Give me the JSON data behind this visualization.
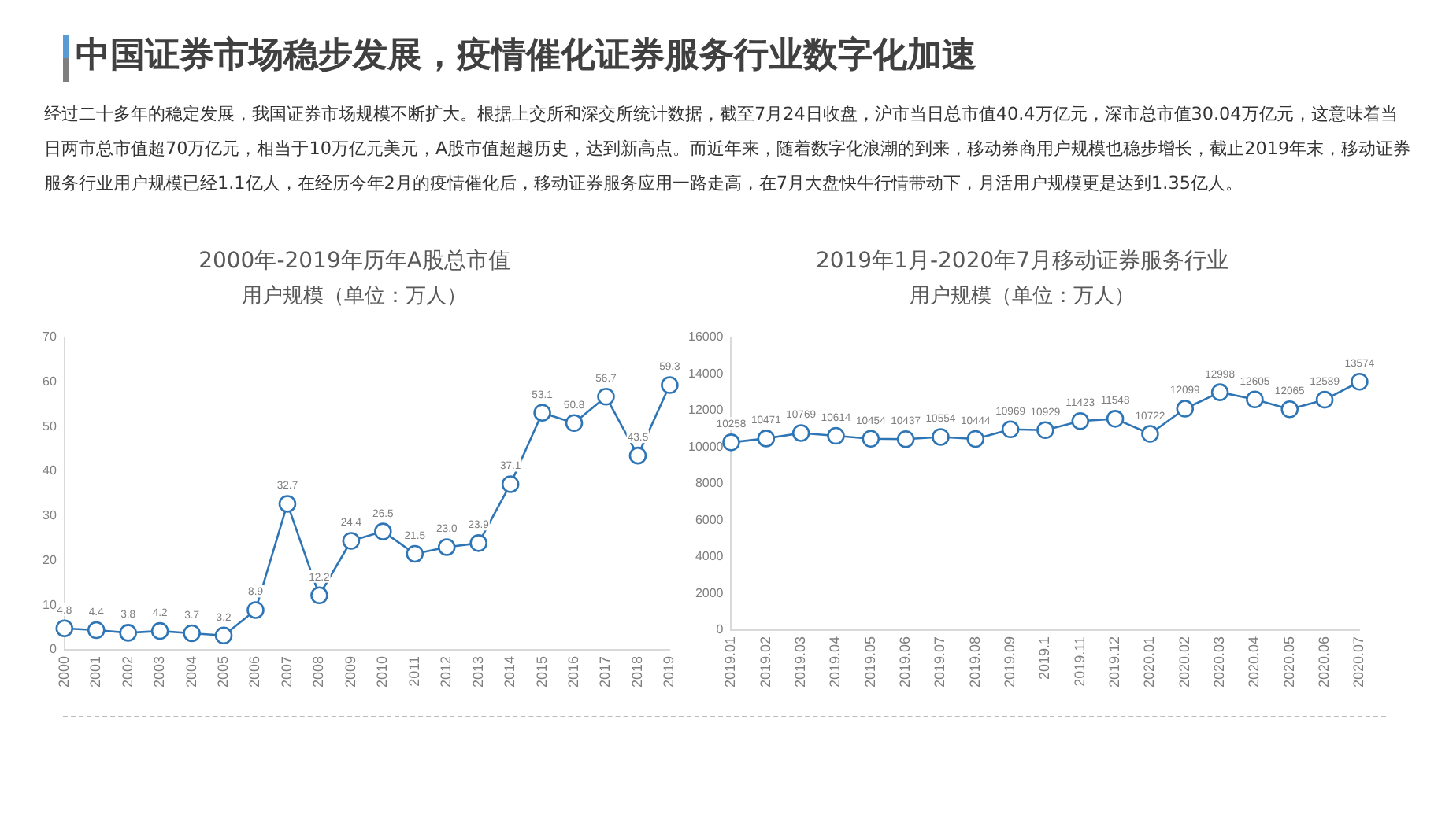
{
  "chart_data": [
    {
      "type": "other",
      "title": "中国证券市场稳步发展，疫情催化证券服务行业数字化加速",
      "annotations": [
        "经过二十多年的稳定发展，我国证券市场规模不断扩大。根据上交所和深交所统计数据，截至7月24日收盘，沪市当日总市值40.4万亿元，深市总市值30.04万亿元，这意味着当日两市总市值超70万亿元，相当于10万亿元美元，A股市值超越历史，达到新高点。而近年来，随着数字化浪潮的到来，移动券商用户规模也稳步增长，截止2019年末，移动证券服务行业用户规模已经1.1亿人，在经历今年2月的疫情催化后，移动证券服务应用一路走高，在7月大盘快牛行情带动下，月活用户规模更是达到1.35亿人。"
      ]
    },
    {
      "type": "line",
      "title": "2000年-2019年历年A股总市值",
      "subtitle": "用户规模（单位：万人）",
      "categories": [
        "2000",
        "2001",
        "2002",
        "2003",
        "2004",
        "2005",
        "2006",
        "2007",
        "2008",
        "2009",
        "2010",
        "2011",
        "2012",
        "2013",
        "2014",
        "2015",
        "2016",
        "2017",
        "2018",
        "2019"
      ],
      "series": [
        {
          "color": "#2e75b6",
          "values": [
            4.8,
            4.4,
            3.8,
            4.2,
            3.7,
            3.2,
            8.9,
            32.7,
            12.2,
            24.4,
            26.5,
            21.5,
            23.0,
            23.9,
            37.1,
            53.1,
            50.8,
            56.7,
            43.5,
            59.3
          ],
          "value_labels": [
            "4.8",
            "4.4",
            "3.8",
            "4.2",
            "3.7",
            "3.2",
            "8.9",
            "32.7",
            "12.2",
            "24.4",
            "26.5",
            "21.5",
            "23.0",
            "23.9",
            "37.1",
            "53.1",
            "50.8",
            "56.7",
            "43.5",
            "59.3"
          ]
        }
      ],
      "ylim": [
        0,
        70
      ],
      "yticks": [
        0,
        10,
        20,
        30,
        40,
        50,
        60,
        70
      ],
      "marker": "circle"
    },
    {
      "type": "line",
      "title": "2019年1月-2020年7月移动证券服务行业",
      "subtitle": "用户规模（单位：万人）",
      "categories": [
        "2019.01",
        "2019.02",
        "2019.03",
        "2019.04",
        "2019.05",
        "2019.06",
        "2019.07",
        "2019.08",
        "2019.09",
        "2019.1",
        "2019.11",
        "2019.12",
        "2020.01",
        "2020.02",
        "2020.03",
        "2020.04",
        "2020.05",
        "2020.06",
        "2020.07"
      ],
      "series": [
        {
          "color": "#2e75b6",
          "values": [
            10258,
            10471,
            10769,
            10614,
            10454,
            10437,
            10554,
            10444,
            10969,
            10929,
            11423,
            11548,
            10722,
            12099,
            12998,
            12605,
            12065,
            12589,
            13574
          ]
        }
      ],
      "ylim": [
        0,
        16000
      ],
      "yticks": [
        0,
        2000,
        4000,
        6000,
        8000,
        10000,
        12000,
        14000,
        16000
      ],
      "data_labels": true,
      "marker": "circle"
    }
  ]
}
